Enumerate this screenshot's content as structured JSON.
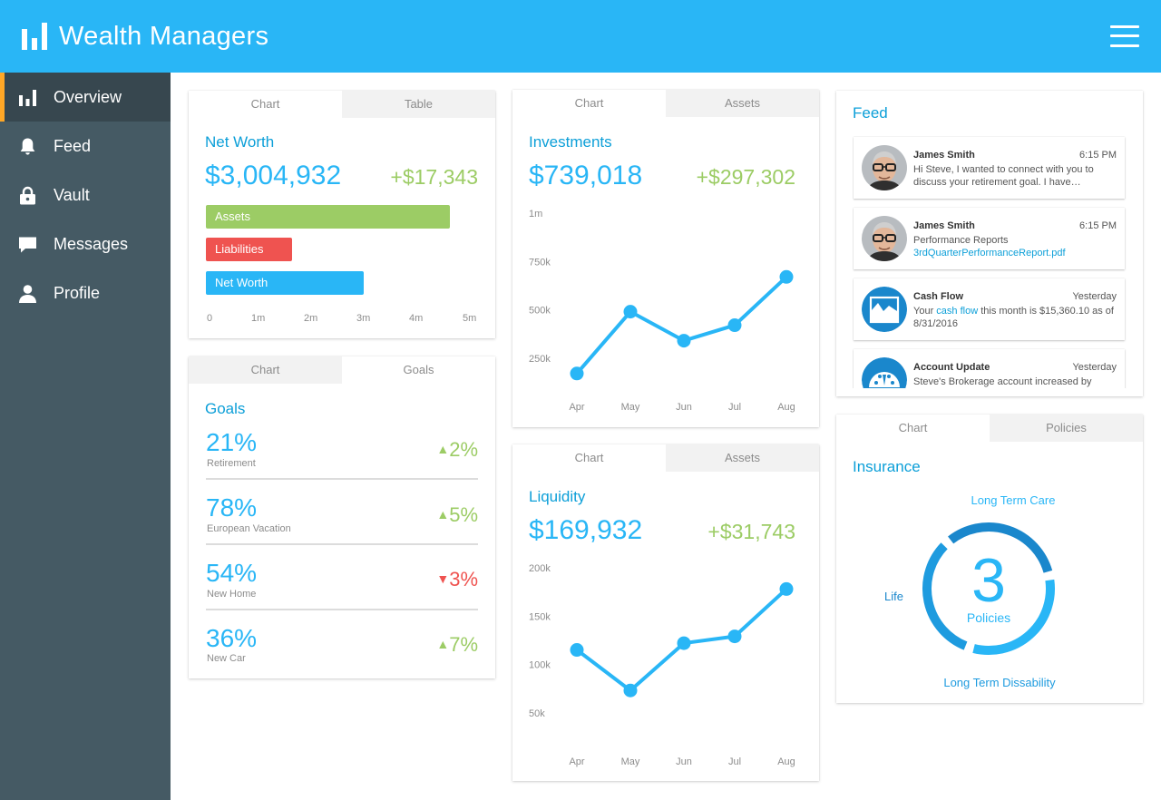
{
  "header": {
    "title": "Wealth Managers",
    "bg_color": "#29b6f6"
  },
  "sidebar": {
    "items": [
      {
        "label": "Overview",
        "icon": "bar-chart-icon",
        "active": true
      },
      {
        "label": "Feed",
        "icon": "bell-icon"
      },
      {
        "label": "Vault",
        "icon": "lock-icon"
      },
      {
        "label": "Messages",
        "icon": "chat-bubble-icon"
      },
      {
        "label": "Profile",
        "icon": "person-icon"
      }
    ],
    "active_accent": "#ffa726"
  },
  "net_worth": {
    "tabs": [
      "Chart",
      "Table"
    ],
    "title": "Net Worth",
    "value": "$3,004,932",
    "delta": "+$17,343",
    "bars": [
      {
        "label": "Assets",
        "value": 4.65,
        "color": "#9ccc65"
      },
      {
        "label": "Liabilities",
        "value": 1.65,
        "color": "#ef5350"
      },
      {
        "label": "Net Worth",
        "value": 3.0,
        "color": "#29b6f6"
      }
    ],
    "axis_ticks": [
      "0",
      "1m",
      "2m",
      "3m",
      "4m",
      "5m"
    ]
  },
  "goals": {
    "tabs": [
      "Chart",
      "Goals"
    ],
    "title": "Goals",
    "items": [
      {
        "pct": "21%",
        "name": "Retirement",
        "delta": "2%",
        "direction": "up"
      },
      {
        "pct": "78%",
        "name": "European Vacation",
        "delta": "5%",
        "direction": "up"
      },
      {
        "pct": "54%",
        "name": "New Home",
        "delta": "3%",
        "direction": "down"
      },
      {
        "pct": "36%",
        "name": "New Car",
        "delta": "7%",
        "direction": "up"
      }
    ]
  },
  "investments": {
    "tabs": [
      "Chart",
      "Assets"
    ],
    "title": "Investments",
    "value": "$739,018",
    "delta": "+$297,302"
  },
  "liquidity": {
    "tabs": [
      "Chart",
      "Assets"
    ],
    "title": "Liquidity",
    "value": "$169,932",
    "delta": "+$31,743"
  },
  "feed": {
    "title": "Feed",
    "items": [
      {
        "type": "message",
        "name": "James Smith",
        "time": "6:15 PM",
        "text": "Hi Steve, I wanted to connect with you to discuss your retirement goal. I have…"
      },
      {
        "type": "message",
        "name": "James Smith",
        "time": "6:15 PM",
        "text": "Performance Reports",
        "link": "3rdQuarterPerformanceReport.pdf"
      },
      {
        "type": "cashflow",
        "name": "Cash Flow",
        "time": "Yesterday",
        "text_before": "Your ",
        "link": "cash flow",
        "text_after": " this month is $15,360.10 as of 8/31/2016"
      },
      {
        "type": "account",
        "name": "Account Update",
        "time": "Yesterday",
        "text": "Steve's Brokerage account increased by"
      }
    ]
  },
  "insurance": {
    "tabs": [
      "Chart",
      "Policies"
    ],
    "title": "Insurance",
    "count": "3",
    "count_label": "Policies",
    "labels": {
      "top": "Long Term Care",
      "left": "Life",
      "bottom": "Long Term Dissability"
    }
  },
  "chart_data": [
    {
      "type": "bar",
      "orientation": "horizontal",
      "categories": [
        "Assets",
        "Liabilities",
        "Net Worth"
      ],
      "values": [
        4650000,
        1650000,
        3004932
      ],
      "xlim": [
        0,
        5000000
      ],
      "x_ticks": [
        "0",
        "1m",
        "2m",
        "3m",
        "4m",
        "5m"
      ],
      "title": "Net Worth"
    },
    {
      "type": "line",
      "title": "Investments",
      "categories": [
        "Apr",
        "May",
        "Jun",
        "Jul",
        "Aug"
      ],
      "values": [
        170000,
        490000,
        340000,
        420000,
        670000
      ],
      "ylim": [
        0,
        1000000
      ],
      "y_ticks": [
        "250k",
        "500k",
        "750k",
        "1m"
      ],
      "color": "#29b6f6"
    },
    {
      "type": "line",
      "title": "Liquidity",
      "categories": [
        "Apr",
        "May",
        "Jun",
        "Jul",
        "Aug"
      ],
      "values": [
        115000,
        73000,
        122000,
        129000,
        178000
      ],
      "ylim": [
        0,
        200000
      ],
      "y_ticks": [
        "50k",
        "100k",
        "150k",
        "200k"
      ],
      "color": "#29b6f6"
    },
    {
      "type": "pie",
      "title": "Insurance",
      "categories": [
        "Long Term Care",
        "Long Term Dissability",
        "Life"
      ],
      "values": [
        1,
        1,
        1
      ],
      "colors": [
        "#29b6f6",
        "#1e9bdf",
        "#1a87cc"
      ]
    }
  ]
}
